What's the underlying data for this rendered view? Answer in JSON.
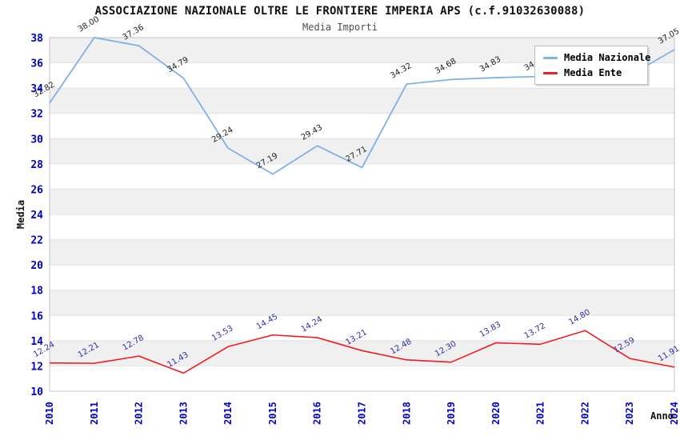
{
  "chart_data": {
    "type": "line",
    "title": "ASSOCIAZIONE NAZIONALE OLTRE LE FRONTIERE IMPERIA APS (c.f.91032630088)",
    "subtitle": "Media Importi",
    "xlabel": "Anno",
    "ylabel": "Media",
    "ylim": [
      10,
      38
    ],
    "ytick_step": 2,
    "grid": "alternating-bands",
    "legend_position": "top-right",
    "categories": [
      "2010",
      "2011",
      "2012",
      "2013",
      "2014",
      "2015",
      "2016",
      "2017",
      "2018",
      "2019",
      "2020",
      "2021",
      "2022",
      "2023",
      "2024"
    ],
    "series": [
      {
        "name": "Media Nazionale",
        "color": "#7db1e8",
        "label_color": "#222222",
        "values": [
          32.82,
          38.0,
          37.36,
          34.79,
          29.24,
          27.19,
          29.43,
          27.71,
          34.32,
          34.68,
          34.83,
          34.92,
          35.2,
          35.0,
          37.05
        ],
        "point_labels": [
          "32.82",
          "38.00",
          "37.36",
          "34.79",
          "29.24",
          "27.19",
          "29.43",
          "27.71",
          "34.32",
          "34.68",
          "34.83",
          "34.92",
          "",
          "",
          "37.05"
        ],
        "note": "2021 label partially hidden and 2022-2023 labels fully hidden behind the legend box; those values estimated from line position"
      },
      {
        "name": "Media Ente",
        "color": "#f21c1c",
        "label_color": "#2e2ea8",
        "values": [
          12.24,
          12.21,
          12.78,
          11.43,
          13.53,
          14.45,
          14.24,
          13.21,
          12.48,
          12.3,
          13.83,
          13.72,
          14.8,
          12.59,
          11.91
        ],
        "point_labels": [
          "12.24",
          "12.21",
          "12.78",
          "11.43",
          "13.53",
          "14.45",
          "14.24",
          "13.21",
          "12.48",
          "12.30",
          "13.83",
          "13.72",
          "14.80",
          "12.59",
          "11.91"
        ]
      }
    ],
    "colors": {
      "band": "#f0f0f0",
      "gridline": "#e2e2e2",
      "plot_border": "#c4c4c4",
      "tick_label": "#0000cc",
      "axis_title": "#111111",
      "legend_bg": "#ffffff",
      "legend_border": "#bdbdbd"
    }
  }
}
